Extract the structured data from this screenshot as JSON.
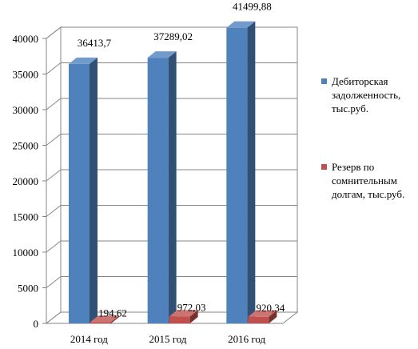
{
  "chart_data": {
    "type": "bar",
    "categories": [
      "2014 год",
      "2015 год",
      "2016 год"
    ],
    "series": [
      {
        "name": "Дебиторская задолженность, тыс.руб.",
        "values": [
          36413.7,
          37289.02,
          41499.88
        ],
        "value_labels": [
          "36413,7",
          "37289,02",
          "41499,88"
        ],
        "color": "#4f81bd"
      },
      {
        "name": "Резерв по сомнительным долгам, тыс.руб.",
        "values": [
          194.62,
          972.03,
          920.34
        ],
        "value_labels": [
          "194,62",
          "972,03",
          "920,34"
        ],
        "color": "#c0504d"
      }
    ],
    "y_ticks": [
      "0",
      "5000",
      "10000",
      "15000",
      "20000",
      "25000",
      "30000",
      "35000",
      "40000"
    ],
    "ylim": [
      0,
      40000
    ],
    "grid": true,
    "legend_position": "right",
    "title": "",
    "xlabel": "",
    "ylabel": ""
  }
}
